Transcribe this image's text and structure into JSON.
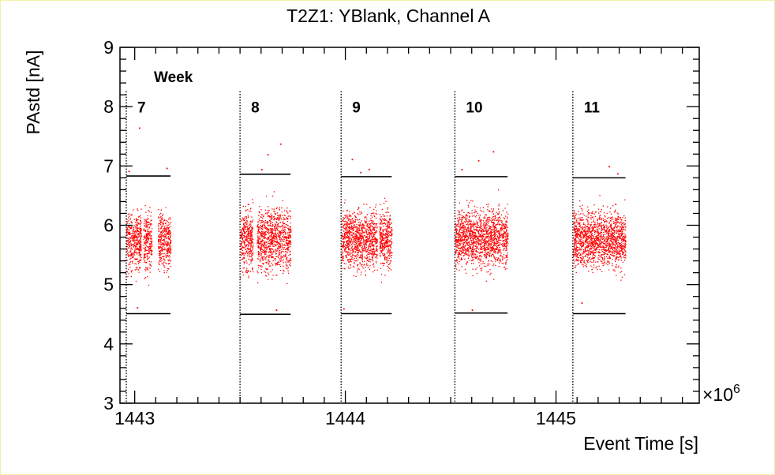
{
  "chart_data": {
    "type": "scatter",
    "title": "T2Z1: YBlank, Channel A",
    "xlabel": "Event Time [s]",
    "ylabel": "PAstd [nA]",
    "x_multiplier_label": "×10",
    "x_multiplier_exponent": "6",
    "x_unit_scale": 1000000,
    "xlim": [
      1442.93,
      1445.68
    ],
    "ylim": [
      3,
      9
    ],
    "x_ticks": [
      1443,
      1444,
      1445
    ],
    "y_ticks": [
      3,
      4,
      5,
      6,
      7,
      8,
      9
    ],
    "grid": false,
    "point_color": "#ff0000",
    "annotation_title": "Week",
    "weeks": [
      {
        "label": "7",
        "boundary_x": 1442.96,
        "data_x_range": [
          1442.96,
          1443.17
        ],
        "upper_limit": 6.83,
        "lower_limit": 4.51,
        "band_range": [
          4.8,
          6.7
        ],
        "blocks": [
          [
            1442.96,
            1443.03
          ],
          [
            1443.04,
            1443.08
          ],
          [
            1443.11,
            1443.17
          ]
        ],
        "outliers": [
          [
            1443.02,
            7.65
          ],
          [
            1442.97,
            6.92
          ],
          [
            1443.15,
            6.97
          ],
          [
            1443.01,
            4.62
          ]
        ]
      },
      {
        "label": "8",
        "boundary_x": 1443.5,
        "data_x_range": [
          1443.5,
          1443.74
        ],
        "upper_limit": 6.86,
        "lower_limit": 4.5,
        "band_range": [
          4.75,
          6.8
        ],
        "blocks": [
          [
            1443.5,
            1443.56
          ],
          [
            1443.58,
            1443.74
          ]
        ],
        "outliers": [
          [
            1443.69,
            7.38
          ],
          [
            1443.63,
            7.2
          ],
          [
            1443.6,
            6.95
          ],
          [
            1443.67,
            4.58
          ]
        ]
      },
      {
        "label": "9",
        "boundary_x": 1443.98,
        "data_x_range": [
          1443.98,
          1444.22
        ],
        "upper_limit": 6.82,
        "lower_limit": 4.51,
        "band_range": [
          4.85,
          6.7
        ],
        "blocks": [
          [
            1443.98,
            1444.15
          ],
          [
            1444.16,
            1444.22
          ]
        ],
        "outliers": [
          [
            1444.03,
            7.12
          ],
          [
            1444.11,
            6.95
          ],
          [
            1443.99,
            4.6
          ],
          [
            1444.07,
            6.9
          ]
        ]
      },
      {
        "label": "10",
        "boundary_x": 1444.52,
        "data_x_range": [
          1444.52,
          1444.77
        ],
        "upper_limit": 6.82,
        "lower_limit": 4.52,
        "band_range": [
          4.85,
          6.75
        ],
        "blocks": [
          [
            1444.52,
            1444.77
          ]
        ],
        "outliers": [
          [
            1444.7,
            7.25
          ],
          [
            1444.63,
            7.1
          ],
          [
            1444.6,
            4.58
          ],
          [
            1444.55,
            6.95
          ]
        ]
      },
      {
        "label": "11",
        "boundary_x": 1445.08,
        "data_x_range": [
          1445.08,
          1445.33
        ],
        "upper_limit": 6.8,
        "lower_limit": 4.51,
        "band_range": [
          4.85,
          6.7
        ],
        "blocks": [
          [
            1445.08,
            1445.33
          ]
        ],
        "outliers": [
          [
            1445.25,
            7.0
          ],
          [
            1445.29,
            6.88
          ],
          [
            1445.12,
            4.7
          ]
        ]
      }
    ]
  }
}
